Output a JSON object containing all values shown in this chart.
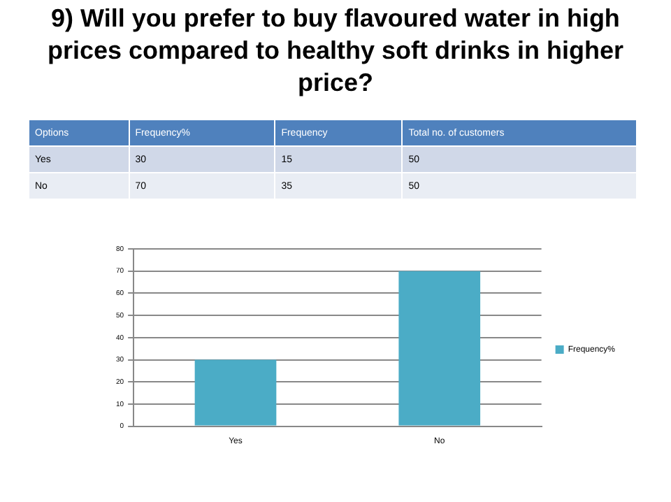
{
  "chart_data": [
    {
      "type": "other",
      "title": "9) Will you prefer to buy flavoured water in high prices compared to healthy soft drinks in higher price?",
      "annotations": [
        "Options",
        "Frequency%",
        "Frequency",
        "Total no. of customers",
        "Yes",
        "30",
        "15",
        "50",
        "No",
        "70",
        "35",
        "50"
      ]
    },
    {
      "type": "bar",
      "categories": [
        "Yes",
        "No"
      ],
      "series": [
        {
          "name": "Frequency%",
          "color": "#4bacc6",
          "values": [
            30,
            70
          ]
        }
      ],
      "ylim": [
        0,
        80
      ],
      "yticks": [
        0,
        10,
        20,
        30,
        40,
        50,
        60,
        70,
        80
      ],
      "grid": "y",
      "legend": "right"
    }
  ]
}
